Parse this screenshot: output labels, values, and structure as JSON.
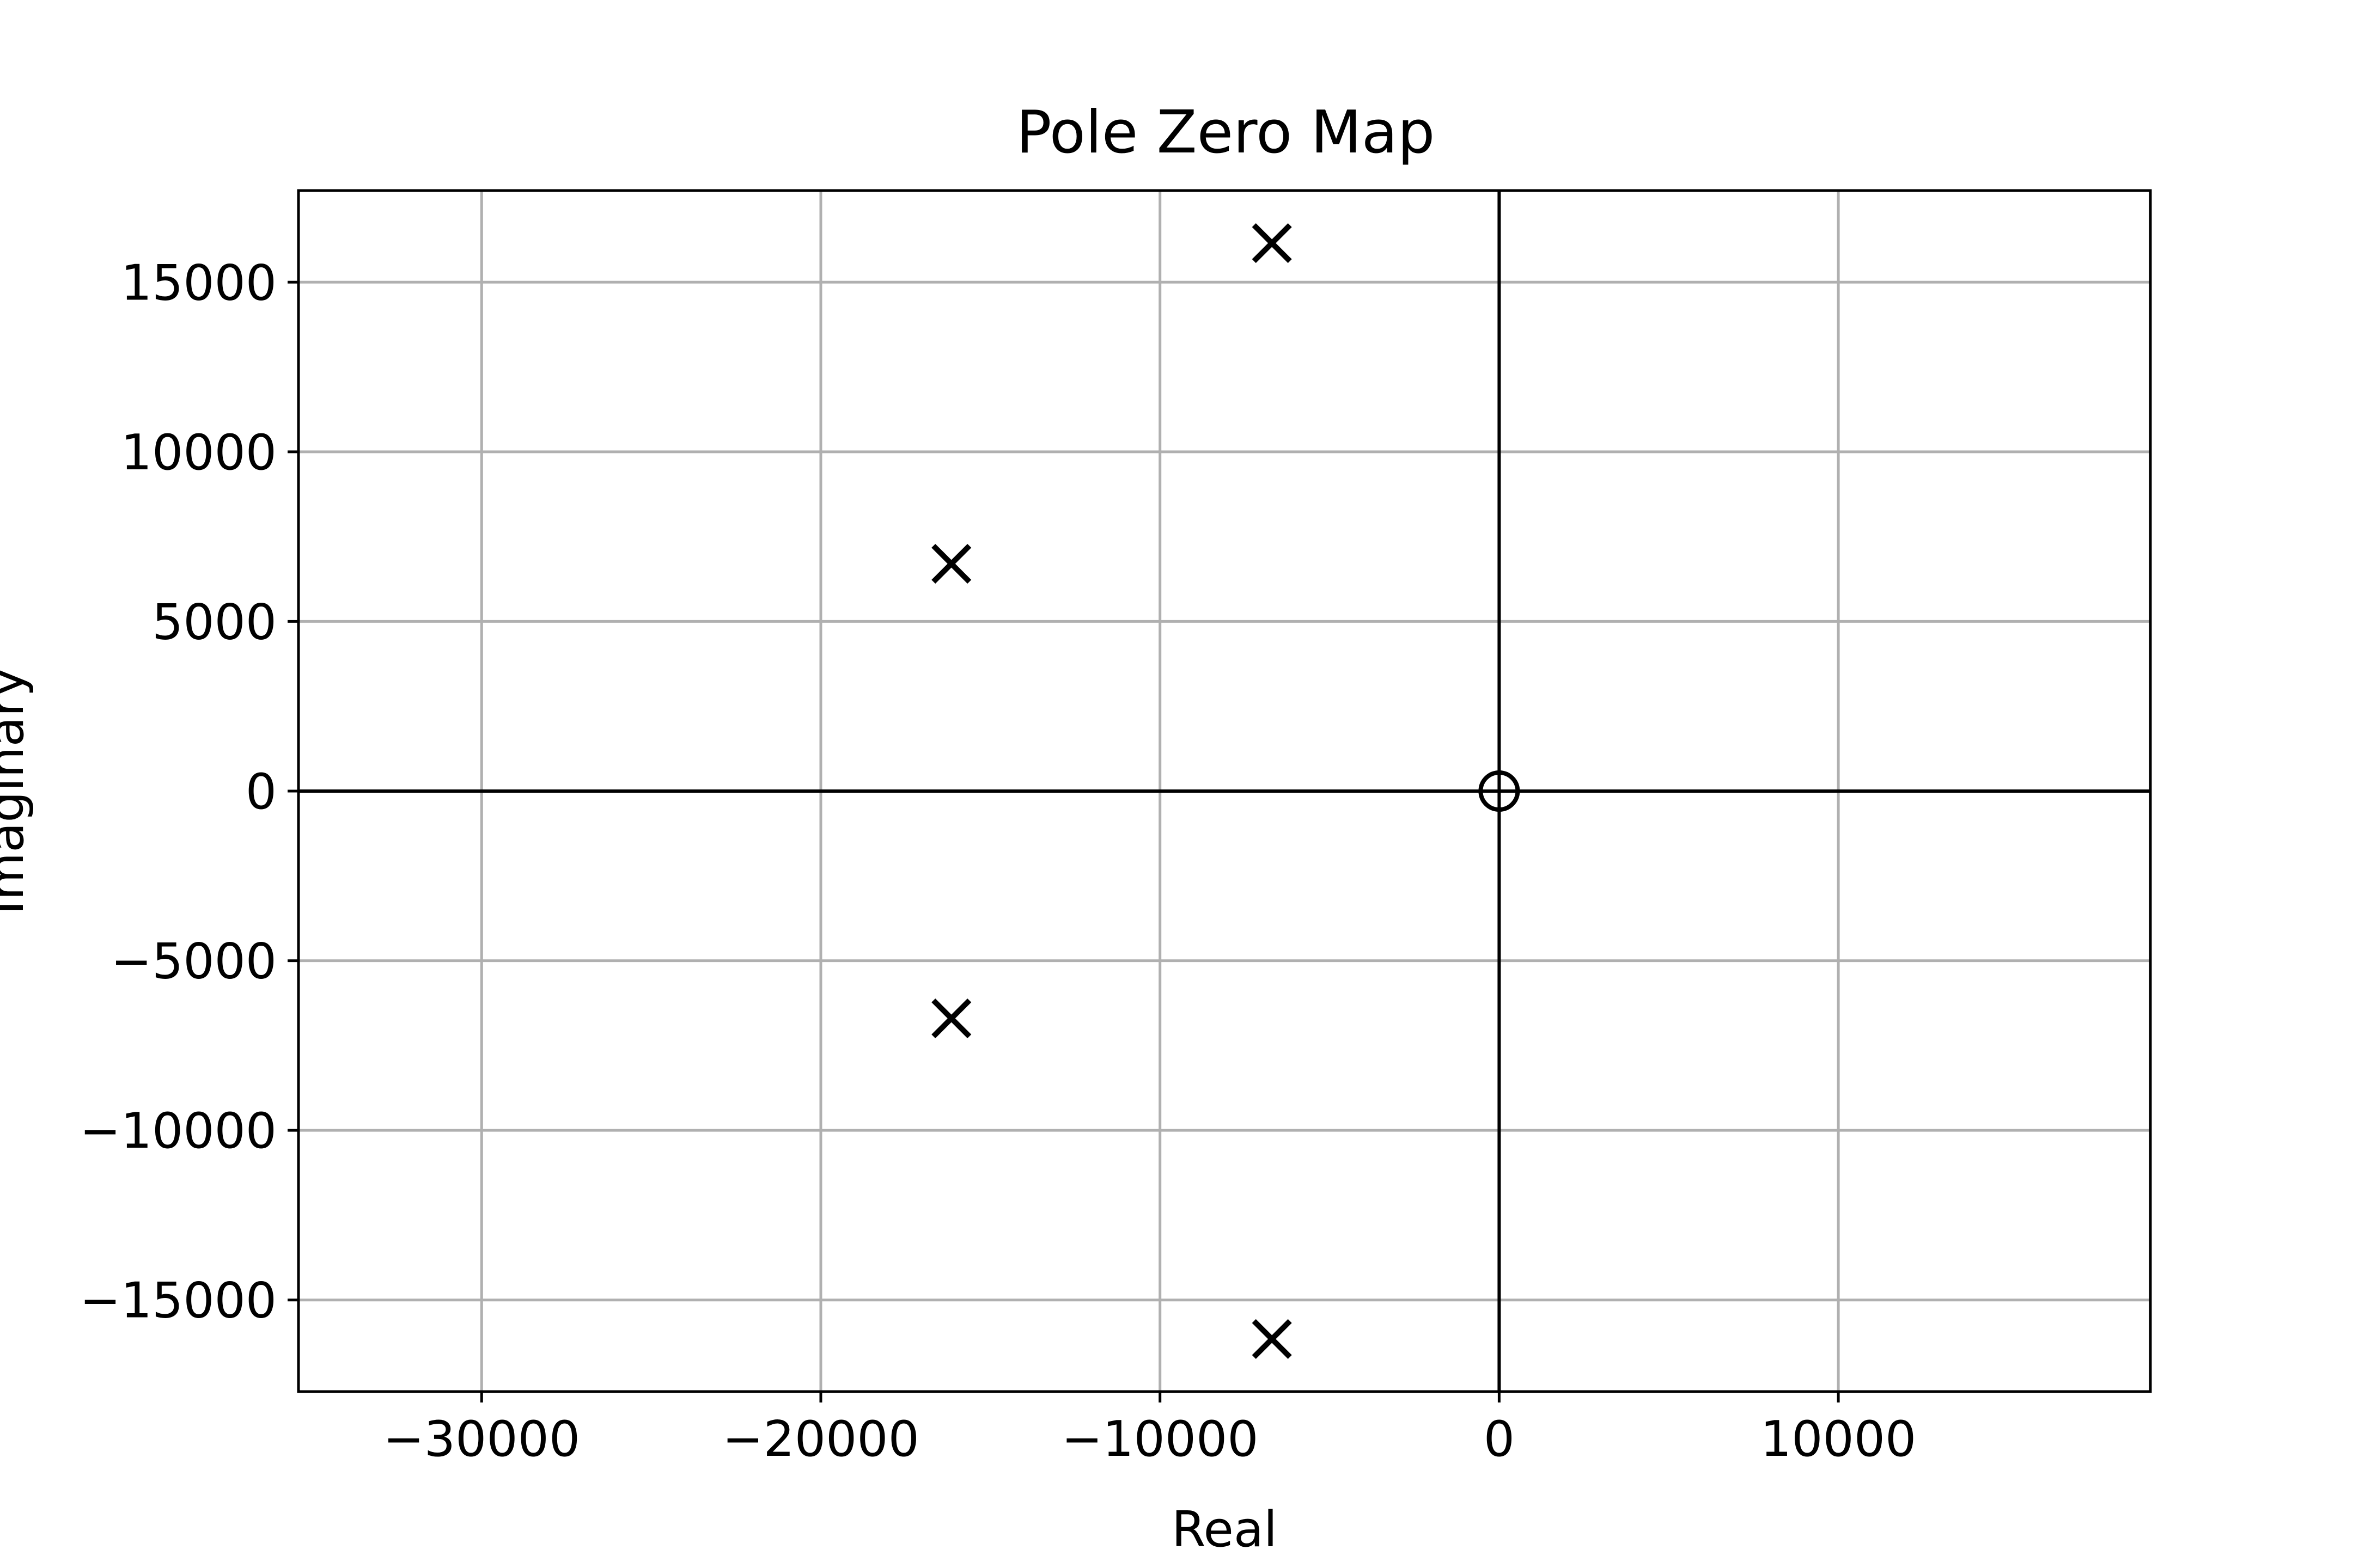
{
  "chart_data": {
    "type": "scatter",
    "title": "Pole Zero Map",
    "xlabel": "Real",
    "ylabel": "Imaginary",
    "xlim": [
      -35400,
      19200
    ],
    "ylim": [
      -17700,
      17700
    ],
    "xticks": [
      {
        "value": -30000,
        "label": "−30000"
      },
      {
        "value": -20000,
        "label": "−20000"
      },
      {
        "value": -10000,
        "label": "−10000"
      },
      {
        "value": 0,
        "label": "0"
      },
      {
        "value": 10000,
        "label": "10000"
      }
    ],
    "yticks": [
      {
        "value": 15000,
        "label": "15000"
      },
      {
        "value": 10000,
        "label": "10000"
      },
      {
        "value": 5000,
        "label": "5000"
      },
      {
        "value": 0,
        "label": "0"
      },
      {
        "value": -5000,
        "label": "−5000"
      },
      {
        "value": -10000,
        "label": "−10000"
      },
      {
        "value": -15000,
        "label": "−15000"
      }
    ],
    "grid": true,
    "reference_lines": {
      "x": 0,
      "y": 0
    },
    "series": [
      {
        "marker": "x",
        "color": "#000000",
        "points": [
          {
            "x": -6700,
            "y": 16150
          },
          {
            "x": -16150,
            "y": 6700
          },
          {
            "x": -16150,
            "y": -6700
          },
          {
            "x": -6700,
            "y": -16150
          }
        ]
      },
      {
        "marker": "o",
        "color": "#000000",
        "points": [
          {
            "x": 0,
            "y": 0
          }
        ]
      }
    ],
    "colors": {
      "grid": "#b0b0b0",
      "axes": "#000000"
    }
  }
}
